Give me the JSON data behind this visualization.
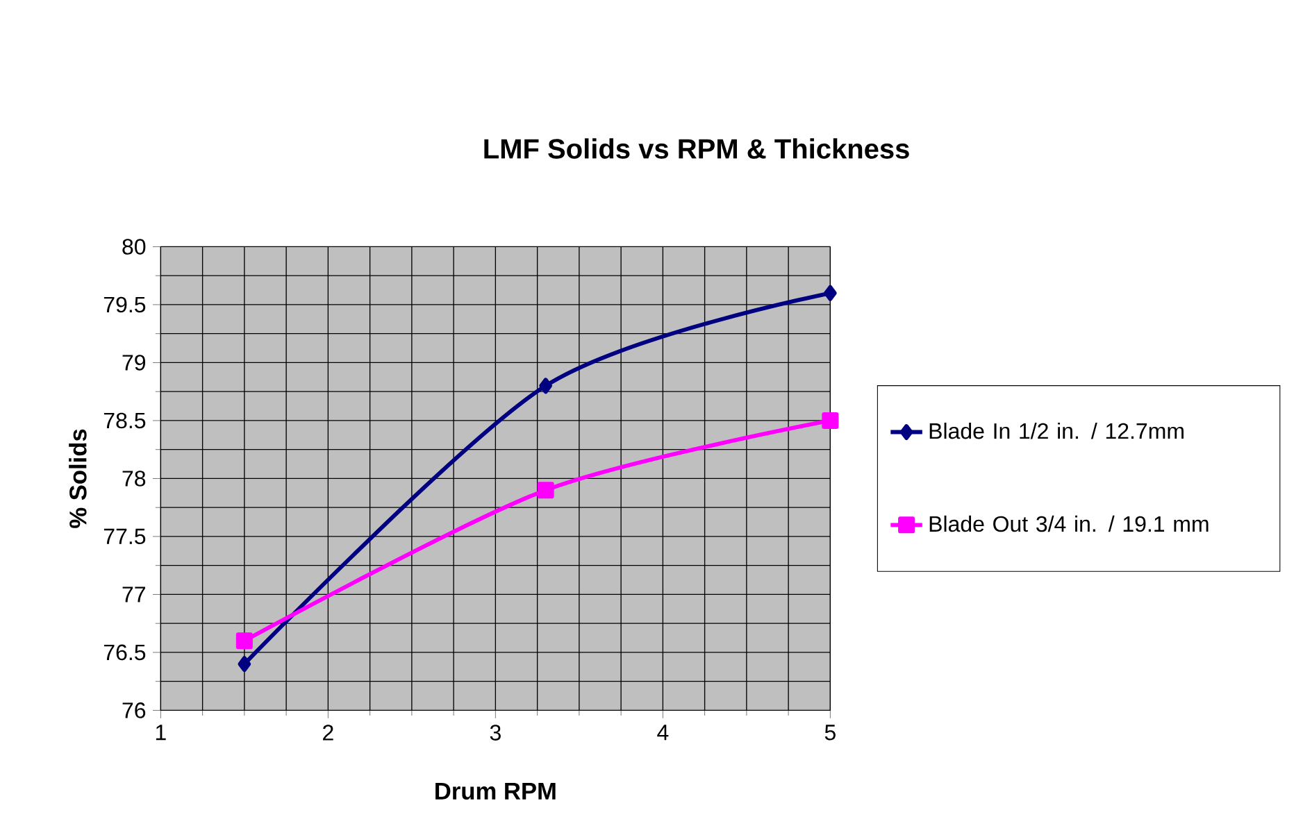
{
  "chart_data": {
    "type": "line",
    "title": "LMF Solids vs RPM & Thickness",
    "xlabel": "Drum RPM",
    "ylabel": "% Solids",
    "xlim": [
      1,
      5
    ],
    "xticks": [
      1,
      2,
      3,
      4,
      5
    ],
    "ylim": [
      76,
      80
    ],
    "yticks": [
      76,
      76.5,
      77,
      77.5,
      78,
      78.5,
      79,
      79.5,
      80
    ],
    "grid": true,
    "legend": "right",
    "series": [
      {
        "name": "Blade In 1/2 in. / 12.7mm",
        "color": "#000080",
        "marker": "diamond",
        "x": [
          1.5,
          3.3,
          5
        ],
        "values": [
          76.4,
          78.8,
          79.6
        ]
      },
      {
        "name": "Blade Out 3/4 in. / 19.1 mm",
        "color": "#ff00ff",
        "marker": "square",
        "x": [
          1.5,
          3.3,
          5
        ],
        "values": [
          76.6,
          77.9,
          78.5
        ]
      }
    ]
  }
}
